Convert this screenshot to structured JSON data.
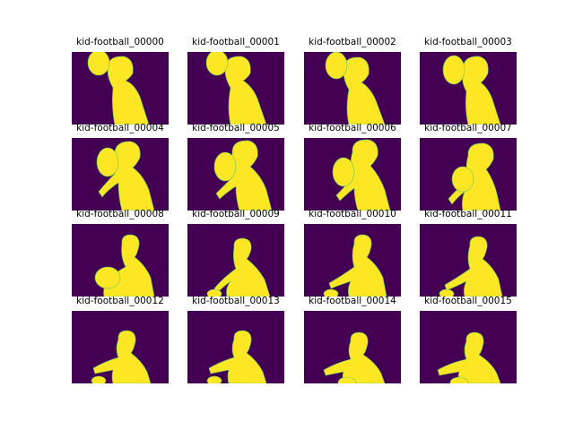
{
  "colors": {
    "background": "#440154",
    "foreground": "#fde725",
    "edge": "#5ec962"
  },
  "frames": [
    {
      "title": "kid-football_00000",
      "ball": [
        30,
        12,
        12,
        14
      ],
      "body": "M40,20 Q39,4 58,5 Q70,8 68,24 Q64,30 60,32 Q70,36 76,50 L86,81 L48,81 Q44,62 46,40 Q40,30 40,20 Z"
    },
    {
      "title": "kid-football_00001",
      "ball": [
        33,
        12,
        12,
        14
      ],
      "body": "M42,20 Q41,4 60,5 Q72,8 70,24 Q66,30 62,32 Q72,38 78,52 L88,81 L48,81 Q44,62 48,40 Q42,30 42,20 Z"
    },
    {
      "title": "kid-football_00002",
      "ball": [
        36,
        15,
        12,
        15
      ],
      "body": "M44,22 Q43,5 62,6 Q74,9 72,25 Q68,32 64,34 Q74,40 80,54 L90,81 L50,81 Q46,64 50,42 Q44,32 44,22 Z"
    },
    {
      "title": "kid-football_00003",
      "ball": [
        38,
        20,
        12,
        16
      ],
      "body": "M48,22 Q47,4 66,5 Q78,8 76,24 Q72,32 68,34 Q78,42 82,56 L90,81 L54,81 Q50,64 52,44 Q46,34 48,22 Z"
    },
    {
      "title": "kid-football_00004",
      "ball": [
        40,
        27,
        12,
        16
      ],
      "body": "M48,20 Q47,3 66,4 Q78,7 76,22 Q72,30 68,33 Q80,42 86,58 L92,81 L56,81 Q52,66 52,50 Q40,58 34,66 L30,60 Q40,48 48,40 Q44,30 48,20 Z"
    },
    {
      "title": "kid-football_00005",
      "ball": [
        42,
        32,
        12,
        16
      ],
      "body": "M50,18 Q49,2 68,3 Q80,6 78,21 Q74,29 70,32 Q82,42 88,58 L94,81 L58,81 Q54,68 54,54 Q42,62 36,68 L32,62 Q42,52 50,44 Q46,30 50,18 Z"
    },
    {
      "title": "kid-football_00006",
      "ball": [
        44,
        38,
        12,
        16
      ],
      "body": "M54,16 Q53,1 72,2 Q84,5 82,20 Q78,28 74,31 Q84,42 90,58 L96,81 L60,81 Q56,68 56,56 Q46,64 40,70 L36,64 Q46,54 54,44 Q50,30 54,16 Z"
    },
    {
      "title": "kid-football_00007",
      "ball": [
        48,
        46,
        12,
        14
      ],
      "body": "M54,20 Q53,5 72,6 Q84,9 82,24 Q78,32 74,35 Q82,46 86,62 L90,81 L48,81 Q46,70 50,60 Q42,66 36,74 L32,68 Q42,56 54,48 Q50,34 54,20 Z"
    },
    {
      "title": "kid-football_00008",
      "ball": [
        40,
        60,
        14,
        12
      ],
      "body": "M56,22 Q55,12 66,12 Q76,13 75,24 Q73,34 70,37 Q82,46 88,60 L92,81 L36,81 Q34,72 40,64 Q48,54 60,48 Q54,36 56,22 Z"
    },
    {
      "title": "kid-football_00009",
      "ball": [
        30,
        78,
        8,
        5
      ],
      "body": "M52,26 Q51,16 62,16 Q72,17 71,28 Q69,36 66,39 Q78,48 86,62 L92,81 L44,81 Q42,72 48,64 Q40,70 34,76 L30,72 Q40,60 54,50 Q50,40 52,26 Z"
    },
    {
      "title": "kid-football_00010",
      "ball": [
        30,
        78,
        8,
        5
      ],
      "body": "M56,22 Q55,12 66,12 Q76,13 75,24 Q73,34 70,37 Q82,46 88,60 L92,81 L50,81 Q48,72 52,64 Q40,68 30,72 L28,66 Q42,58 56,48 Q52,36 56,22 Z"
    },
    {
      "title": "kid-football_00011",
      "ball": [
        30,
        78,
        8,
        5
      ],
      "body": "M56,24 Q55,14 66,14 Q76,15 75,26 Q73,36 70,39 Q82,48 88,62 L92,81 L50,81 Q48,72 52,64 Q40,70 30,74 L28,68 Q42,60 56,50 Q52,38 56,24 Z"
    },
    {
      "title": "kid-football_00012",
      "ball": [
        30,
        78,
        8,
        5
      ],
      "body": "M52,32 Q51,22 62,22 Q72,23 71,34 Q69,44 66,47 Q78,56 84,68 L88,81 L46,81 Q44,74 46,66 Q36,68 26,70 L24,64 Q38,56 52,52 Q48,42 52,32 Z"
    },
    {
      "title": "kid-football_00013",
      "ball": [
        30,
        78,
        8,
        5
      ],
      "body": "M52,32 Q51,22 62,22 Q72,23 71,34 Q69,44 66,47 Q78,56 84,68 L88,81 L46,81 Q44,74 46,66 Q36,68 26,70 L24,64 Q38,56 52,52 Q48,42 52,32 Z"
    },
    {
      "title": "kid-football_00014",
      "ball": [
        48,
        80,
        10,
        6
      ],
      "body": "M52,34 Q51,24 62,24 Q72,25 71,36 Q69,46 66,49 Q80,58 86,70 L90,81 L44,81 Q42,74 44,68 Q34,70 24,72 L22,66 Q36,58 52,54 Q48,44 52,34 Z"
    },
    {
      "title": "kid-football_00015",
      "ball": [
        44,
        80,
        10,
        6
      ],
      "body": "M52,34 Q51,24 62,24 Q72,25 71,36 Q69,46 66,49 Q80,58 86,70 L90,81 L44,81 Q42,74 44,68 Q32,70 22,72 L20,66 Q34,58 52,54 Q48,44 52,34 Z"
    }
  ]
}
